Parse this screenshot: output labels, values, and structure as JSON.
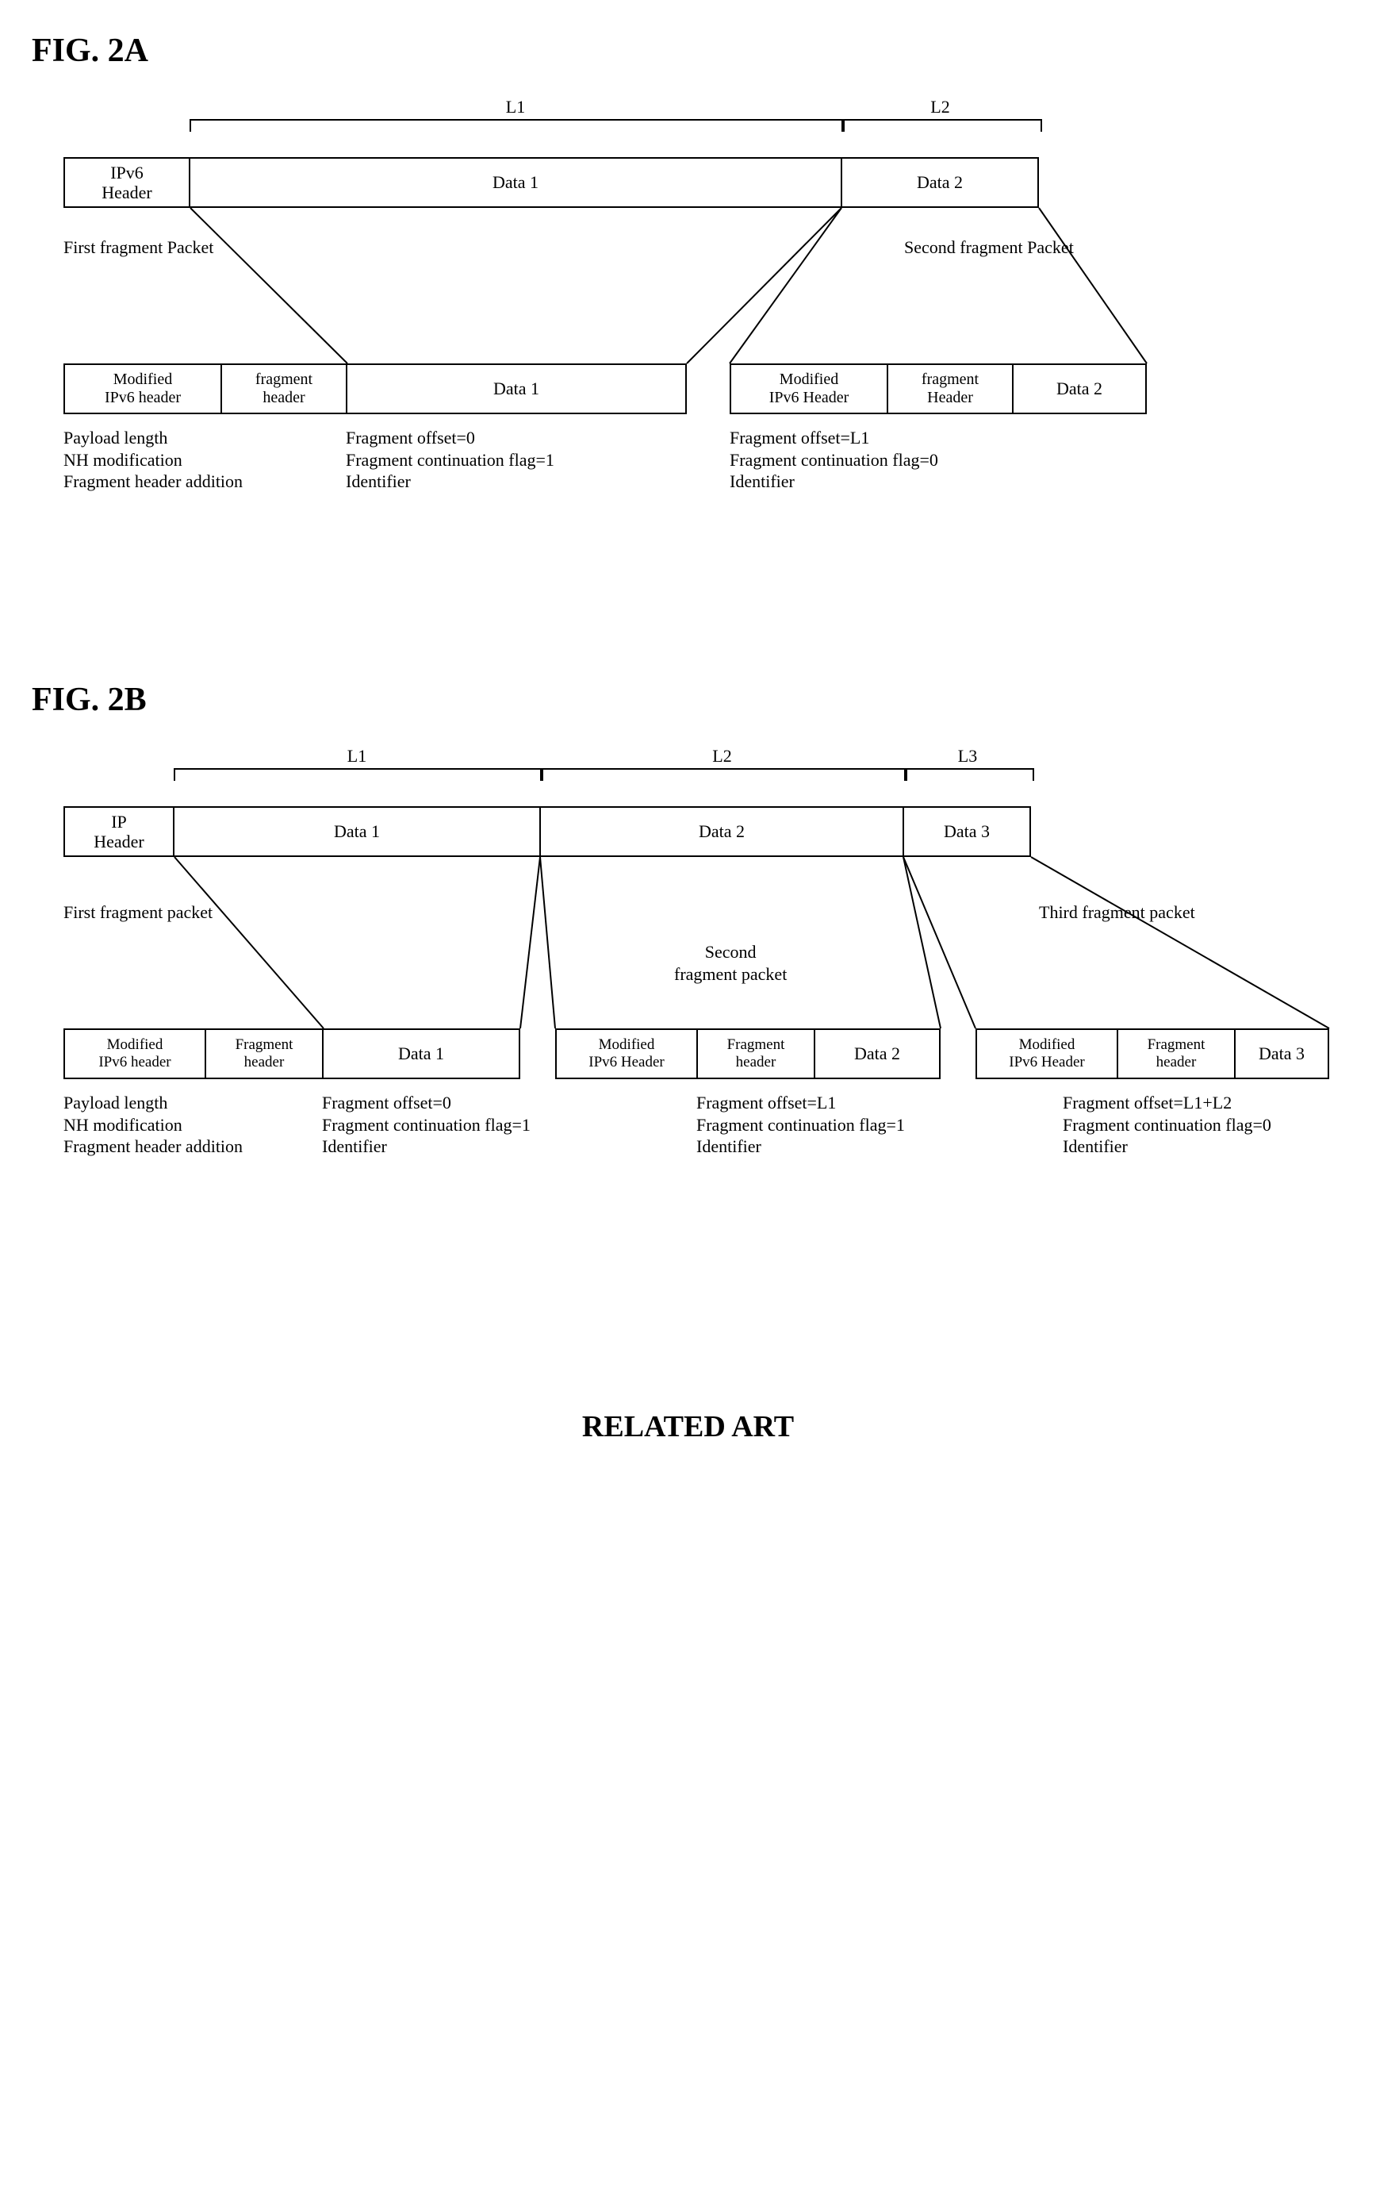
{
  "relatedArt": "RELATED ART",
  "figA": {
    "title": "FIG. 2A",
    "top": {
      "ipv6": "IPv6\nHeader",
      "data1": "Data 1",
      "data2": "Data 2",
      "L1": "L1",
      "L2": "L2"
    },
    "labels": {
      "firstPacket": "First fragment Packet",
      "secondPacket": "Second fragment Packet"
    },
    "frag1": {
      "hdr": "Modified\nIPv6 header",
      "fh": "fragment\nheader",
      "data": "Data 1"
    },
    "frag2": {
      "hdr": "Modified\nIPv6 Header",
      "fh": "fragment\nHeader",
      "data": "Data 2"
    },
    "notes": {
      "left": "Payload length\nNH modification\nFragment header addition",
      "frag1": "Fragment offset=0\nFragment continuation flag=1\nIdentifier",
      "frag2": "Fragment offset=L1\nFragment continuation flag=0\nIdentifier"
    }
  },
  "figB": {
    "title": "FIG. 2B",
    "top": {
      "ip": "IP\nHeader",
      "data1": "Data 1",
      "data2": "Data 2",
      "data3": "Data 3",
      "L1": "L1",
      "L2": "L2",
      "L3": "L3"
    },
    "labels": {
      "firstPacket": "First fragment packet",
      "secondPacket": "Second\nfragment packet",
      "thirdPacket": "Third fragment packet"
    },
    "frag1": {
      "hdr": "Modified\nIPv6 header",
      "fh": "Fragment\nheader",
      "data": "Data 1"
    },
    "frag2": {
      "hdr": "Modified\nIPv6 Header",
      "fh": "Fragment\nheader",
      "data": "Data 2"
    },
    "frag3": {
      "hdr": "Modified\nIPv6 Header",
      "fh": "Fragment\nheader",
      "data": "Data 3"
    },
    "notes": {
      "left": "Payload length\nNH modification\nFragment header addition",
      "frag1": "Fragment offset=0\nFragment continuation flag=1\nIdentifier",
      "frag2": "Fragment offset=L1\nFragment continuation flag=1\nIdentifier",
      "frag3": "Fragment offset=L1+L2\nFragment continuation flag=0\nIdentifier"
    }
  },
  "style": {
    "boxHeight": 64,
    "topRowY_A": 80,
    "botRowY_A": 340,
    "topRowY_B": 80,
    "botRowY_B": 360,
    "colors": {
      "stroke": "#000000",
      "bg": "#ffffff"
    }
  }
}
